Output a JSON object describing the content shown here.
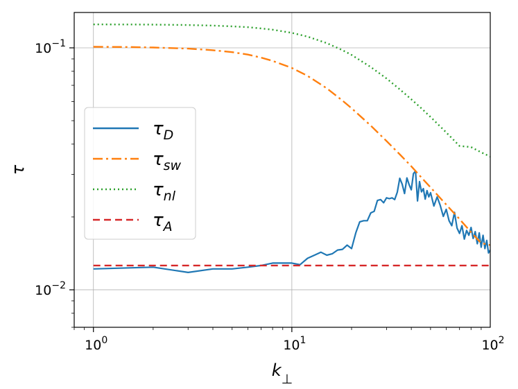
{
  "chart_data": {
    "type": "line",
    "xscale": "log",
    "yscale": "log",
    "xlim": [
      0.8,
      100
    ],
    "ylim": [
      0.007,
      0.14
    ],
    "xlabel": "k⊥",
    "ylabel": "τ",
    "grid": true,
    "legend_position": "center-left",
    "xticks": [
      {
        "value": 1,
        "base": "10",
        "exp": "0"
      },
      {
        "value": 10,
        "base": "10",
        "exp": "1"
      },
      {
        "value": 100,
        "base": "10",
        "exp": "2"
      }
    ],
    "yticks": [
      {
        "value": 0.01,
        "base": "10",
        "exp": "−2"
      },
      {
        "value": 0.1,
        "base": "10",
        "exp": "−1"
      }
    ],
    "series": [
      {
        "name": "τD",
        "name_base": "τ",
        "name_sub": "D",
        "color": "#1f77b4",
        "dash": "solid",
        "x": [
          1,
          2,
          3,
          4,
          5,
          6,
          7,
          8,
          9,
          10,
          11,
          12,
          13,
          14,
          15,
          16,
          17,
          18,
          19,
          20,
          21,
          22,
          23,
          24,
          25,
          26,
          27,
          28,
          29,
          30,
          31,
          32,
          33,
          34,
          35,
          36,
          37,
          38,
          39,
          40,
          41,
          42,
          43,
          44,
          45,
          46,
          47,
          48,
          49,
          50,
          52,
          54,
          56,
          58,
          60,
          62,
          64,
          66,
          68,
          70,
          72,
          74,
          76,
          78,
          80,
          82,
          84,
          86,
          88,
          90,
          92,
          94,
          96,
          98,
          100
        ],
        "y": [
          0.0122,
          0.0124,
          0.0118,
          0.0122,
          0.0122,
          0.0124,
          0.0126,
          0.0129,
          0.0129,
          0.0129,
          0.0127,
          0.0135,
          0.0139,
          0.0143,
          0.0139,
          0.0141,
          0.0146,
          0.0147,
          0.0153,
          0.0148,
          0.0172,
          0.0191,
          0.0193,
          0.0193,
          0.0208,
          0.0211,
          0.0234,
          0.0236,
          0.0229,
          0.024,
          0.0238,
          0.024,
          0.0236,
          0.0253,
          0.0289,
          0.0273,
          0.025,
          0.029,
          0.0272,
          0.0259,
          0.0302,
          0.031,
          0.0233,
          0.028,
          0.0254,
          0.0262,
          0.0237,
          0.0257,
          0.0242,
          0.0252,
          0.0222,
          0.0242,
          0.0223,
          0.0201,
          0.0215,
          0.0193,
          0.0184,
          0.0209,
          0.018,
          0.0171,
          0.0184,
          0.0162,
          0.0176,
          0.0168,
          0.0181,
          0.0163,
          0.0174,
          0.0155,
          0.0172,
          0.015,
          0.0168,
          0.0148,
          0.016,
          0.0142,
          0.0146
        ]
      },
      {
        "name": "τsw",
        "name_base": "τ",
        "name_sub": "sw",
        "color": "#ff7f0e",
        "dash": "dashdot",
        "x": [
          1,
          1.5,
          2,
          3,
          4,
          5,
          6,
          7,
          8,
          10,
          12,
          15,
          18,
          20,
          25,
          30,
          35,
          40,
          45,
          50,
          60,
          70,
          80,
          90,
          100
        ],
        "y": [
          0.101,
          0.1008,
          0.1003,
          0.0993,
          0.0978,
          0.096,
          0.0938,
          0.0911,
          0.0883,
          0.0826,
          0.0766,
          0.068,
          0.0605,
          0.0563,
          0.0477,
          0.0412,
          0.0363,
          0.0324,
          0.0291,
          0.0265,
          0.0225,
          0.0196,
          0.0173,
          0.0156,
          0.0153
        ]
      },
      {
        "name": "τnl",
        "name_base": "τ",
        "name_sub": "nl",
        "color": "#2ca02c",
        "dash": "dotted",
        "x": [
          1,
          1.5,
          2,
          3,
          4,
          5,
          6,
          7,
          8,
          10,
          12,
          15,
          18,
          20,
          25,
          30,
          35,
          40,
          45,
          50,
          60,
          70,
          80,
          90,
          100
        ],
        "y": [
          0.125,
          0.1249,
          0.1247,
          0.1242,
          0.1236,
          0.1227,
          0.1217,
          0.1203,
          0.1189,
          0.1153,
          0.1113,
          0.1046,
          0.0978,
          0.0935,
          0.0833,
          0.0747,
          0.0674,
          0.0613,
          0.0562,
          0.0518,
          0.0447,
          0.0393,
          0.0389,
          0.037,
          0.0355
        ]
      },
      {
        "name": "τA",
        "name_base": "τ",
        "name_sub": "A",
        "color": "#d62728",
        "dash": "dashed",
        "x": [
          1,
          100
        ],
        "y": [
          0.0126,
          0.0126
        ]
      }
    ]
  }
}
